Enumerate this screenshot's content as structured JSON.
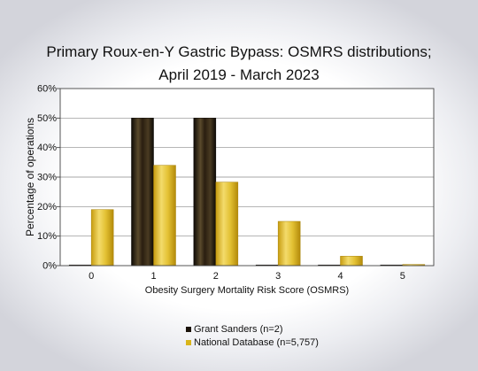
{
  "title_line1": "Primary Roux-en-Y Gastric Bypass: OSMRS distributions;",
  "title_line2": "April 2019 - March 2023",
  "chart_data": {
    "type": "bar",
    "title": "Primary Roux-en-Y Gastric Bypass: OSMRS distributions; April 2019 - March 2023",
    "categories": [
      "0",
      "1",
      "2",
      "3",
      "4",
      "5"
    ],
    "series": [
      {
        "name": "Grant Sanders (n=2)",
        "values": [
          0,
          50,
          50,
          0,
          0,
          0
        ],
        "color": "#1a1209"
      },
      {
        "name": "National Database (n=5,757)",
        "values": [
          19,
          34,
          28.3,
          15,
          3.2,
          0.4
        ],
        "color": "#d9b51a"
      }
    ],
    "xlabel": "Obesity Surgery Mortality Risk Score (OSMRS)",
    "ylabel": "Percentage of operations",
    "ylim": [
      0,
      60
    ],
    "yticks": [
      "0%",
      "10%",
      "20%",
      "30%",
      "40%",
      "50%",
      "60%"
    ],
    "grid": true,
    "legend_position": "bottom"
  }
}
